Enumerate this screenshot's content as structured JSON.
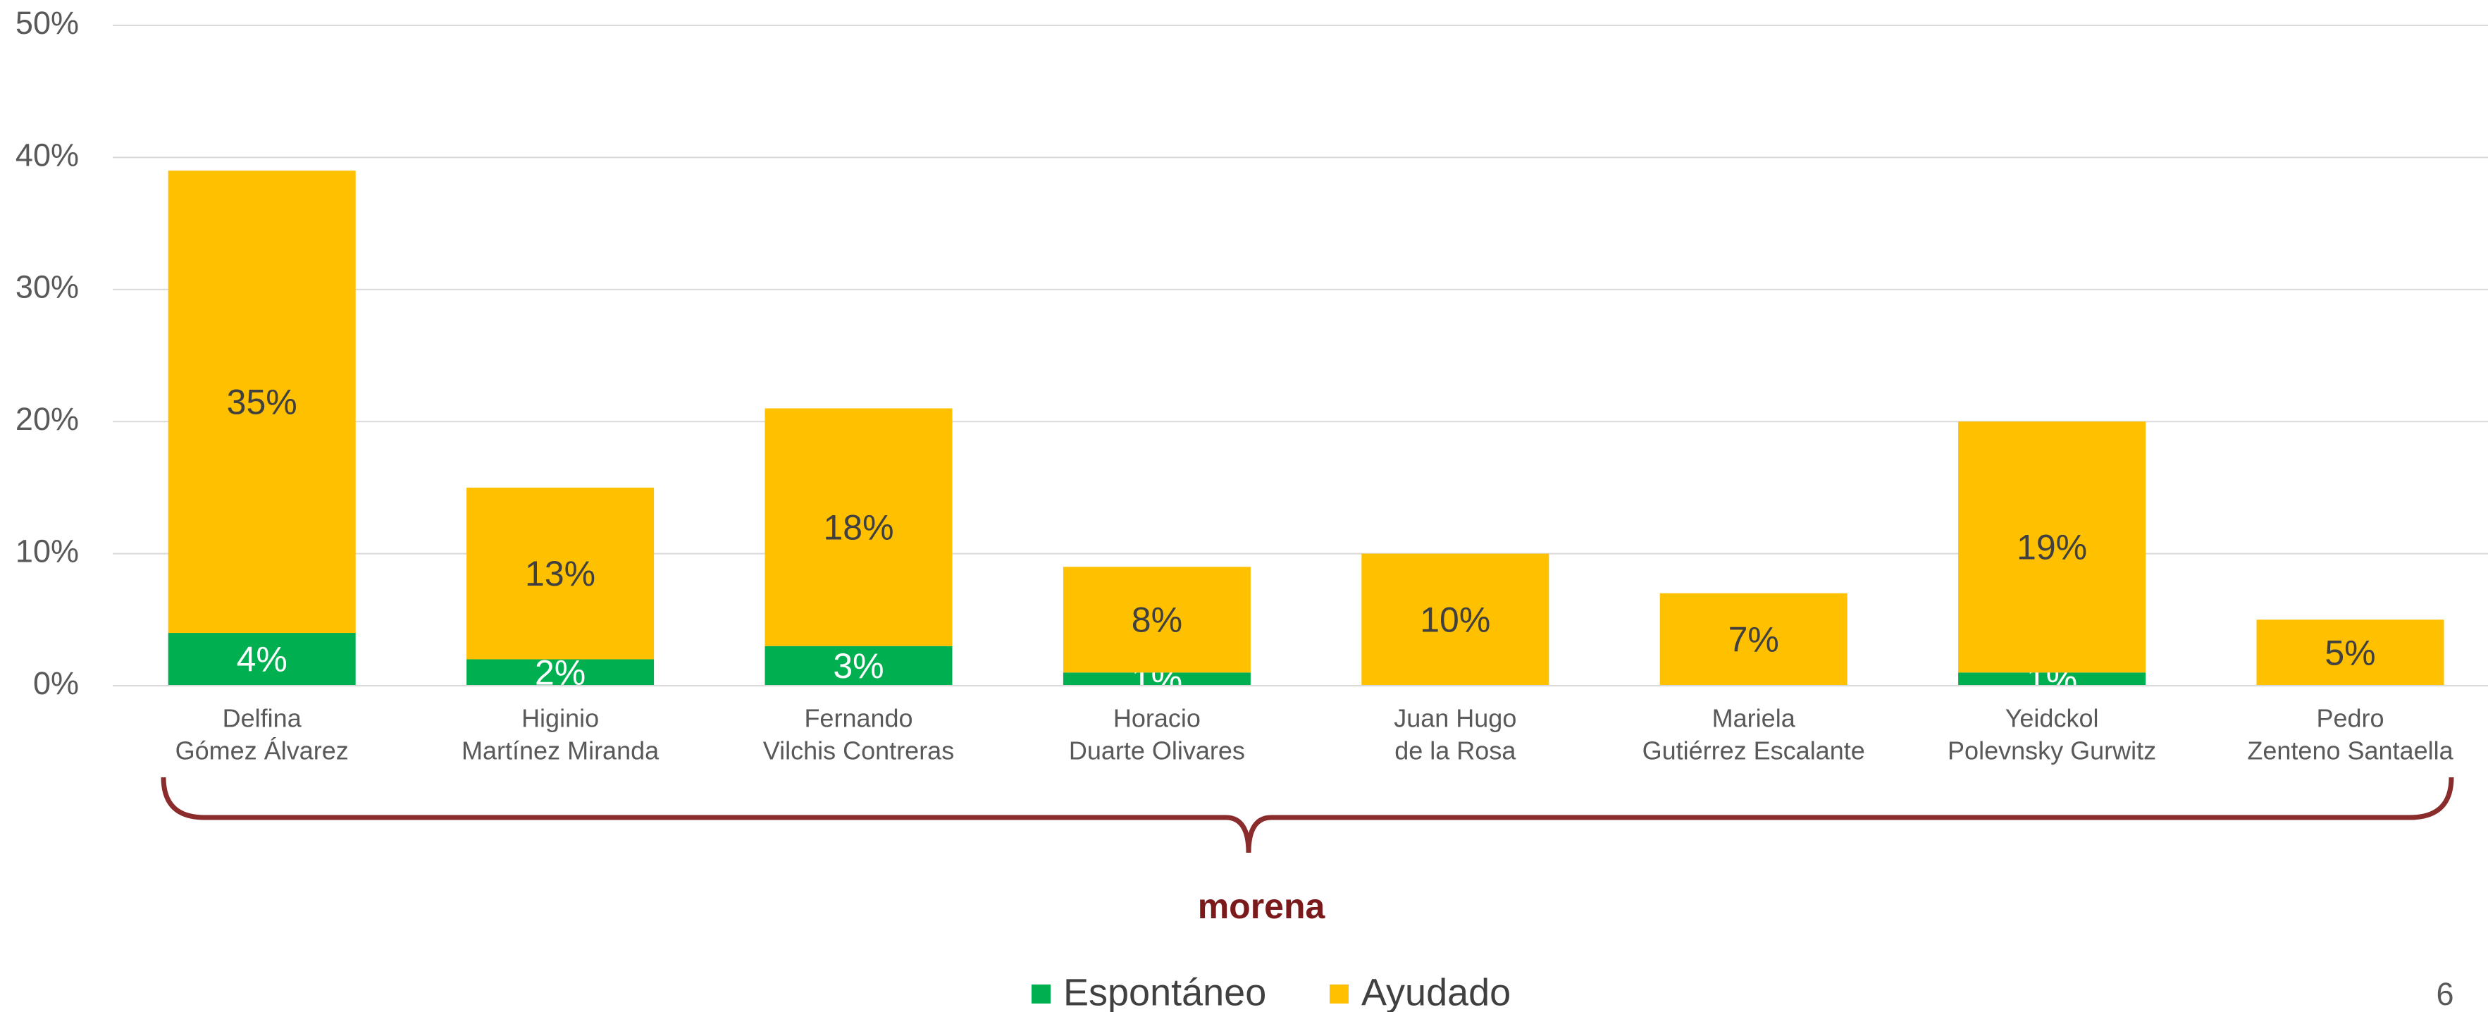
{
  "chart_data": {
    "type": "stacked_bar",
    "categories": [
      [
        "Delfina",
        "Gómez Álvarez"
      ],
      [
        "Higinio",
        "Martínez Miranda"
      ],
      [
        "Fernando",
        "Vilchis Contreras"
      ],
      [
        "Horacio",
        "Duarte Olivares"
      ],
      [
        "Juan Hugo",
        "de la Rosa"
      ],
      [
        "Mariela",
        "Gutiérrez Escalante"
      ],
      [
        "Yeidckol",
        "Polevnsky Gurwitz"
      ],
      [
        "Pedro",
        "Zenteno Santaella"
      ]
    ],
    "series": [
      {
        "name": "Espontáneo",
        "color": "#00b050",
        "values": [
          4,
          2,
          3,
          1,
          0,
          0,
          1,
          0
        ],
        "value_labels": [
          "4%",
          "2%",
          "3%",
          "1%",
          null,
          null,
          "1%",
          null
        ]
      },
      {
        "name": "Ayudado",
        "color": "#ffc000",
        "values": [
          35,
          13,
          18,
          8,
          10,
          7,
          19,
          5
        ],
        "value_labels": [
          "35%",
          "13%",
          "18%",
          "8%",
          "10%",
          "7%",
          "19%",
          "5%"
        ]
      }
    ],
    "ylim": [
      0,
      50
    ],
    "yticks": [
      {
        "value": 0,
        "label": "0%"
      },
      {
        "value": 10,
        "label": "10%"
      },
      {
        "value": 20,
        "label": "20%"
      },
      {
        "value": 30,
        "label": "30%"
      },
      {
        "value": 40,
        "label": "40%"
      },
      {
        "value": 50,
        "label": "50%"
      }
    ],
    "grid": true,
    "legend": "bottom",
    "annotation": "morena",
    "page_number": "6"
  }
}
